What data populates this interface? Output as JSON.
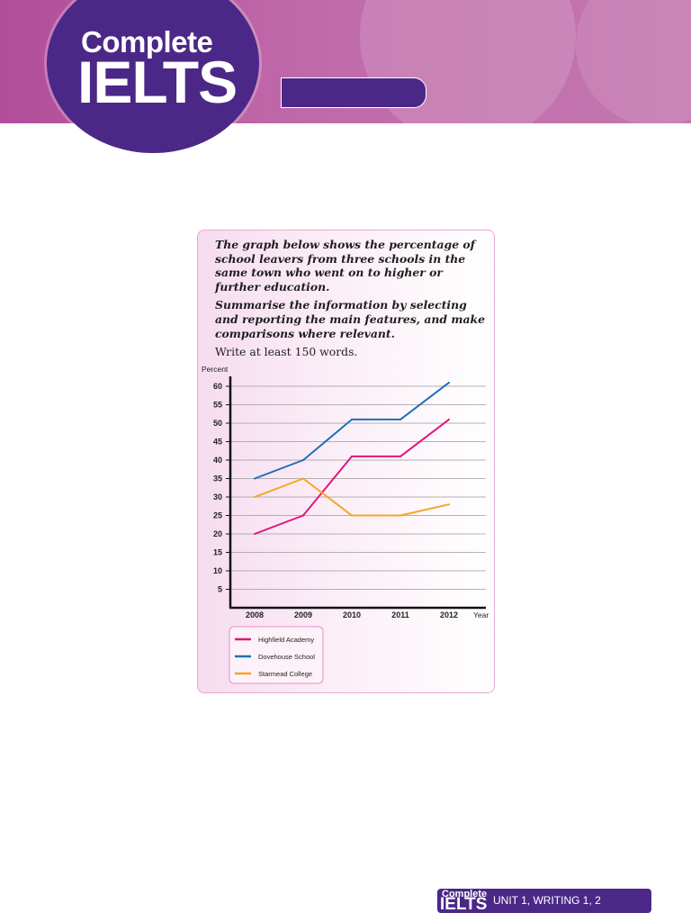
{
  "header": {
    "logo_complete": "Complete",
    "logo_ielts": "IELTS"
  },
  "task": {
    "prompt1": "The graph below shows the percentage of school leavers from three schools in the same town who went on to higher or further education.",
    "prompt2": "Summarise the information by selecting and reporting the main features, and make comparisons where relevant.",
    "instruction": "Write at least 150 words."
  },
  "chart_data": {
    "type": "line",
    "ylabel": "Percent",
    "xlabel": "Year",
    "x": [
      "2008",
      "2009",
      "2010",
      "2011",
      "2012"
    ],
    "yticks": [
      5,
      10,
      15,
      20,
      25,
      30,
      35,
      40,
      45,
      50,
      55,
      60
    ],
    "ylim": [
      0,
      62
    ],
    "grid": true,
    "legend_position": "bottom-left",
    "series": [
      {
        "name": "Highfield Academy",
        "color": "#e2147f",
        "values": [
          20,
          25,
          41,
          41,
          51
        ]
      },
      {
        "name": "Dovehouse School",
        "color": "#1f6fb7",
        "values": [
          35,
          40,
          51,
          51,
          61
        ]
      },
      {
        "name": "Starmead College",
        "color": "#f5a623",
        "values": [
          30,
          35,
          25,
          25,
          28
        ]
      }
    ]
  },
  "footer": {
    "logo_complete": "Complete",
    "logo_ielts": "IELTS",
    "unit": "UNIT 1, WRITING 1, 2"
  }
}
